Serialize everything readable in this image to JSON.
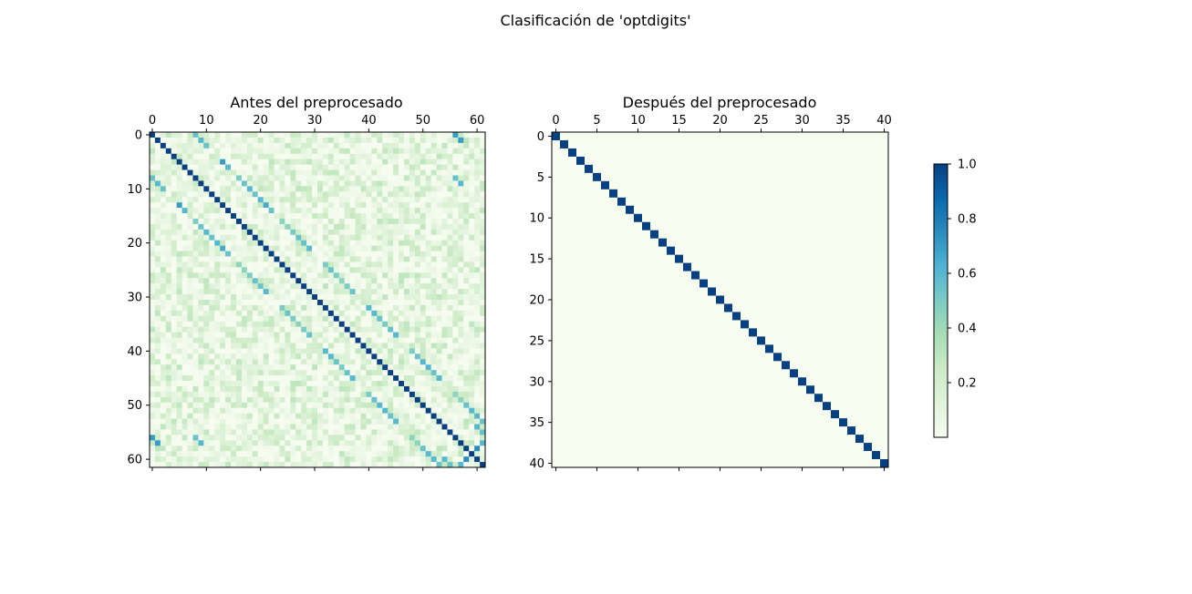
{
  "figure": {
    "suptitle": "Clasificación de 'optdigits'"
  },
  "chart_data": [
    {
      "type": "heatmap",
      "title": "Antes del preprocesado",
      "colormap": "GnBu",
      "size": 62,
      "value_range": [
        0,
        1
      ],
      "x_ticks": [
        0,
        10,
        20,
        30,
        40,
        50,
        60
      ],
      "y_ticks": [
        0,
        10,
        20,
        30,
        40,
        50,
        60
      ],
      "x_tick_position": "top",
      "diagonal_value": 1.0,
      "strong_correlations": [
        {
          "i": 0,
          "j": 8,
          "value": 0.55
        },
        {
          "i": 1,
          "j": 9,
          "value": 0.6
        },
        {
          "i": 2,
          "j": 10,
          "value": 0.55
        },
        {
          "i": 5,
          "j": 13,
          "value": 0.7
        },
        {
          "i": 6,
          "j": 14,
          "value": 0.6
        },
        {
          "i": 8,
          "j": 16,
          "value": 0.5
        },
        {
          "i": 9,
          "j": 17,
          "value": 0.55
        },
        {
          "i": 10,
          "j": 18,
          "value": 0.6
        },
        {
          "i": 11,
          "j": 19,
          "value": 0.55
        },
        {
          "i": 12,
          "j": 20,
          "value": 0.6
        },
        {
          "i": 13,
          "j": 21,
          "value": 0.65
        },
        {
          "i": 14,
          "j": 22,
          "value": 0.55
        },
        {
          "i": 16,
          "j": 24,
          "value": 0.45
        },
        {
          "i": 17,
          "j": 25,
          "value": 0.45
        },
        {
          "i": 18,
          "j": 26,
          "value": 0.5
        },
        {
          "i": 19,
          "j": 27,
          "value": 0.55
        },
        {
          "i": 20,
          "j": 28,
          "value": 0.55
        },
        {
          "i": 21,
          "j": 29,
          "value": 0.6
        },
        {
          "i": 24,
          "j": 32,
          "value": 0.5
        },
        {
          "i": 25,
          "j": 33,
          "value": 0.55
        },
        {
          "i": 26,
          "j": 34,
          "value": 0.5
        },
        {
          "i": 27,
          "j": 35,
          "value": 0.45
        },
        {
          "i": 28,
          "j": 36,
          "value": 0.5
        },
        {
          "i": 29,
          "j": 37,
          "value": 0.55
        },
        {
          "i": 32,
          "j": 40,
          "value": 0.6
        },
        {
          "i": 33,
          "j": 41,
          "value": 0.6
        },
        {
          "i": 34,
          "j": 42,
          "value": 0.55
        },
        {
          "i": 35,
          "j": 43,
          "value": 0.5
        },
        {
          "i": 36,
          "j": 44,
          "value": 0.55
        },
        {
          "i": 37,
          "j": 45,
          "value": 0.6
        },
        {
          "i": 40,
          "j": 48,
          "value": 0.5
        },
        {
          "i": 41,
          "j": 49,
          "value": 0.55
        },
        {
          "i": 42,
          "j": 50,
          "value": 0.6
        },
        {
          "i": 43,
          "j": 51,
          "value": 0.6
        },
        {
          "i": 44,
          "j": 52,
          "value": 0.55
        },
        {
          "i": 45,
          "j": 53,
          "value": 0.6
        },
        {
          "i": 0,
          "j": 56,
          "value": 0.7
        },
        {
          "i": 1,
          "j": 57,
          "value": 0.7
        },
        {
          "i": 8,
          "j": 56,
          "value": 0.55
        },
        {
          "i": 9,
          "j": 57,
          "value": 0.6
        },
        {
          "i": 48,
          "j": 56,
          "value": 0.45
        },
        {
          "i": 49,
          "j": 57,
          "value": 0.45
        },
        {
          "i": 50,
          "j": 58,
          "value": 0.55
        },
        {
          "i": 51,
          "j": 59,
          "value": 0.6
        },
        {
          "i": 52,
          "j": 60,
          "value": 0.6
        },
        {
          "i": 53,
          "j": 61,
          "value": 0.55
        },
        {
          "i": 54,
          "j": 60,
          "value": 0.6
        },
        {
          "i": 55,
          "j": 61,
          "value": 0.55
        },
        {
          "i": 57,
          "j": 61,
          "value": 0.6
        },
        {
          "i": 58,
          "j": 60,
          "value": 0.75
        }
      ],
      "background_range": [
        0.0,
        0.3
      ]
    },
    {
      "type": "heatmap",
      "title": "Después del preprocesado",
      "colormap": "GnBu",
      "size": 41,
      "value_range": [
        0,
        1
      ],
      "x_ticks": [
        0,
        5,
        10,
        15,
        20,
        25,
        30,
        35,
        40
      ],
      "y_ticks": [
        0,
        5,
        10,
        15,
        20,
        25,
        30,
        35,
        40
      ],
      "x_tick_position": "top",
      "diagonal_value": 1.0,
      "off_diagonal_value": 0.0
    }
  ],
  "colorbar": {
    "ticks": [
      0.2,
      0.4,
      0.6,
      0.8,
      1.0
    ],
    "tick_labels": [
      "0.2",
      "0.4",
      "0.6",
      "0.8",
      "1.0"
    ],
    "range": [
      0.0,
      1.0
    ]
  }
}
